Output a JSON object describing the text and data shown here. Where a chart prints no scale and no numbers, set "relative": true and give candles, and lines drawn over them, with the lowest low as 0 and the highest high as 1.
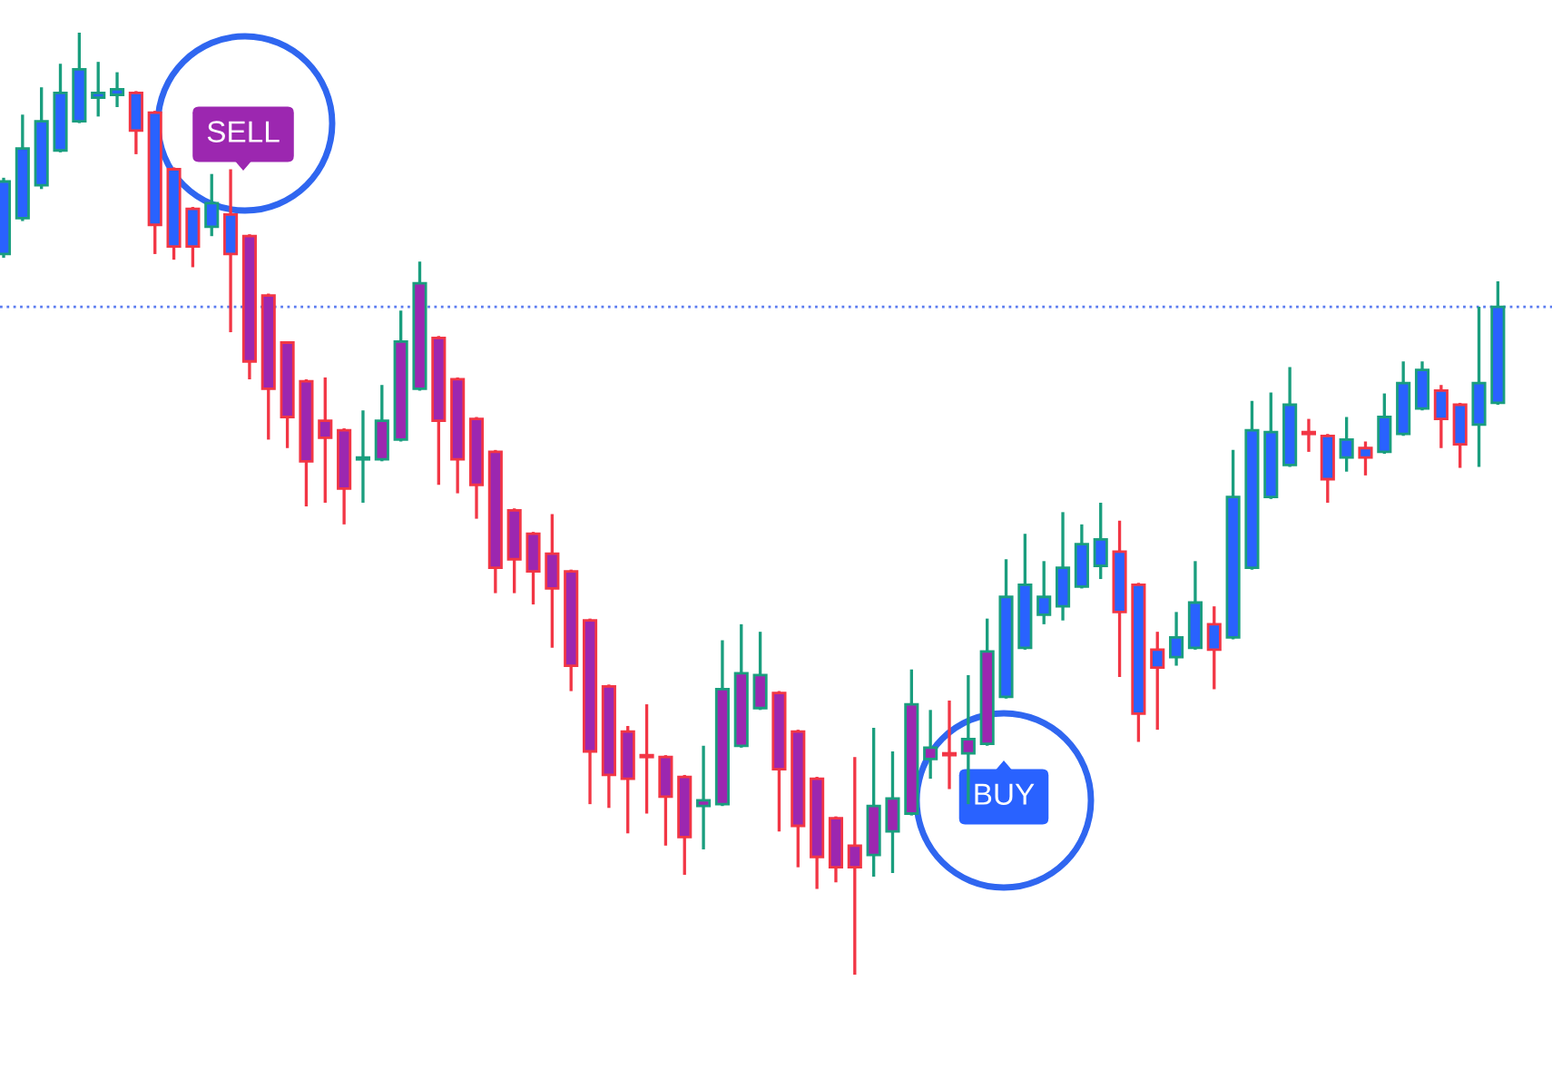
{
  "chart_data": {
    "type": "candlestick",
    "relative": true,
    "categories": [
      null,
      null,
      null,
      null,
      null,
      null,
      null,
      null,
      null,
      null,
      null,
      null,
      null,
      null,
      null,
      null,
      null,
      null,
      null,
      null,
      null,
      null,
      null,
      null,
      null,
      null,
      null,
      null,
      null,
      null,
      null,
      null,
      null,
      null,
      null,
      null,
      null,
      null,
      null,
      null,
      null,
      null,
      null,
      null,
      null,
      null,
      null,
      null,
      null,
      null,
      null,
      null,
      null,
      null,
      null,
      null,
      null,
      null,
      null,
      null,
      null,
      null,
      null,
      null,
      null,
      null,
      null,
      null,
      null,
      null,
      null,
      null,
      null,
      null,
      null,
      null,
      null,
      null,
      null,
      null
    ],
    "ohlc": [
      [
        0.765,
        0.846,
        0.761,
        0.842
      ],
      [
        0.803,
        0.913,
        0.8,
        0.877
      ],
      [
        0.838,
        0.942,
        0.834,
        0.906
      ],
      [
        0.875,
        0.967,
        0.873,
        0.936
      ],
      [
        0.906,
        1,
        0.904,
        0.961
      ],
      [
        0.931,
        0.969,
        0.911,
        0.936
      ],
      [
        0.934,
        0.958,
        0.921,
        0.94
      ],
      [
        0.936,
        0.938,
        0.871,
        0.896
      ],
      [
        0.915,
        0.917,
        0.765,
        0.796
      ],
      [
        0.855,
        0.857,
        0.759,
        0.773
      ],
      [
        0.813,
        0.815,
        0.751,
        0.773
      ],
      [
        0.794,
        0.85,
        0.784,
        0.819
      ],
      [
        0.807,
        0.855,
        0.682,
        0.765
      ],
      [
        0.784,
        0.786,
        0.632,
        0.651
      ],
      [
        0.721,
        0.723,
        0.568,
        0.622
      ],
      [
        0.671,
        0.672,
        0.559,
        0.592
      ],
      [
        0.63,
        0.632,
        0.497,
        0.545
      ],
      [
        0.588,
        0.634,
        0.501,
        0.57
      ],
      [
        0.578,
        0.58,
        0.478,
        0.516
      ],
      [
        0.547,
        0.599,
        0.501,
        0.549
      ],
      [
        0.547,
        0.626,
        0.545,
        0.588
      ],
      [
        0.568,
        0.705,
        0.566,
        0.672
      ],
      [
        0.622,
        0.757,
        0.62,
        0.734
      ],
      [
        0.676,
        0.678,
        0.52,
        0.588
      ],
      [
        0.632,
        0.634,
        0.511,
        0.547
      ],
      [
        0.59,
        0.592,
        0.484,
        0.52
      ],
      [
        0.555,
        0.557,
        0.405,
        0.432
      ],
      [
        0.493,
        0.495,
        0.405,
        0.441
      ],
      [
        0.468,
        0.47,
        0.393,
        0.428
      ],
      [
        0.447,
        0.489,
        0.347,
        0.41
      ],
      [
        0.428,
        0.43,
        0.301,
        0.328
      ],
      [
        0.376,
        0.378,
        0.181,
        0.237
      ],
      [
        0.306,
        0.308,
        0.177,
        0.212
      ],
      [
        0.258,
        0.264,
        0.15,
        0.208
      ],
      [
        0.233,
        0.287,
        0.171,
        0.231
      ],
      [
        0.231,
        0.233,
        0.137,
        0.189
      ],
      [
        0.21,
        0.212,
        0.106,
        0.146
      ],
      [
        0.179,
        0.243,
        0.133,
        0.185
      ],
      [
        0.181,
        0.355,
        0.179,
        0.303
      ],
      [
        0.243,
        0.372,
        0.241,
        0.32
      ],
      [
        0.283,
        0.364,
        0.281,
        0.318
      ],
      [
        0.299,
        0.301,
        0.152,
        0.218
      ],
      [
        0.258,
        0.26,
        0.114,
        0.158
      ],
      [
        0.208,
        0.21,
        0.091,
        0.125
      ],
      [
        0.166,
        0.168,
        0.098,
        0.114
      ],
      [
        0.137,
        0.231,
        0,
        0.114
      ],
      [
        0.127,
        0.262,
        0.104,
        0.179
      ],
      [
        0.152,
        0.237,
        0.108,
        0.187
      ],
      [
        0.171,
        0.324,
        0.169,
        0.287
      ],
      [
        0.229,
        0.281,
        0.208,
        0.241
      ],
      [
        0.235,
        0.291,
        0.197,
        0.233
      ],
      [
        0.235,
        0.318,
        0.181,
        0.25
      ],
      [
        0.245,
        0.378,
        0.243,
        0.343
      ],
      [
        0.295,
        0.441,
        0.293,
        0.401
      ],
      [
        0.347,
        0.468,
        0.345,
        0.414
      ],
      [
        0.382,
        0.439,
        0.372,
        0.401
      ],
      [
        0.391,
        0.491,
        0.376,
        0.432
      ],
      [
        0.412,
        0.478,
        0.41,
        0.457
      ],
      [
        0.434,
        0.501,
        0.42,
        0.462
      ],
      [
        0.449,
        0.482,
        0.316,
        0.385
      ],
      [
        0.414,
        0.416,
        0.247,
        0.277
      ],
      [
        0.345,
        0.364,
        0.26,
        0.326
      ],
      [
        0.337,
        0.385,
        0.328,
        0.358
      ],
      [
        0.347,
        0.439,
        0.345,
        0.395
      ],
      [
        0.372,
        0.391,
        0.303,
        0.345
      ],
      [
        0.358,
        0.557,
        0.356,
        0.507
      ],
      [
        0.432,
        0.609,
        0.43,
        0.578
      ],
      [
        0.507,
        0.618,
        0.505,
        0.576
      ],
      [
        0.541,
        0.645,
        0.539,
        0.605
      ],
      [
        0.576,
        0.59,
        0.555,
        0.574
      ],
      [
        0.572,
        0.574,
        0.501,
        0.526
      ],
      [
        0.549,
        0.592,
        0.534,
        0.568
      ],
      [
        0.559,
        0.566,
        0.53,
        0.549
      ],
      [
        0.555,
        0.617,
        0.553,
        0.592
      ],
      [
        0.574,
        0.651,
        0.572,
        0.628
      ],
      [
        0.601,
        0.651,
        0.599,
        0.642
      ],
      [
        0.62,
        0.626,
        0.559,
        0.59
      ],
      [
        0.605,
        0.607,
        0.538,
        0.563
      ],
      [
        0.584,
        0.709,
        0.539,
        0.628
      ],
      [
        0.607,
        0.736,
        0.605,
        0.709
      ]
    ],
    "colors": [
      "#2962ff",
      "#2962ff",
      "#2962ff",
      "#2962ff",
      "#2962ff",
      "#2962ff",
      "#2962ff",
      "#2962ff",
      "#2962ff",
      "#2962ff",
      "#2962ff",
      "#2962ff",
      "#2962ff",
      "#9c27b0",
      "#9c27b0",
      "#9c27b0",
      "#9c27b0",
      "#9c27b0",
      "#9c27b0",
      "#9c27b0",
      "#9c27b0",
      "#9c27b0",
      "#9c27b0",
      "#9c27b0",
      "#9c27b0",
      "#9c27b0",
      "#9c27b0",
      "#9c27b0",
      "#9c27b0",
      "#9c27b0",
      "#9c27b0",
      "#9c27b0",
      "#9c27b0",
      "#9c27b0",
      "#9c27b0",
      "#9c27b0",
      "#9c27b0",
      "#9c27b0",
      "#9c27b0",
      "#9c27b0",
      "#9c27b0",
      "#9c27b0",
      "#9c27b0",
      "#9c27b0",
      "#9c27b0",
      "#9c27b0",
      "#9c27b0",
      "#9c27b0",
      "#9c27b0",
      "#9c27b0",
      "#9c27b0",
      "#9c27b0",
      "#9c27b0",
      "#2962ff",
      "#2962ff",
      "#2962ff",
      "#2962ff",
      "#2962ff",
      "#2962ff",
      "#2962ff",
      "#2962ff",
      "#2962ff",
      "#2962ff",
      "#2962ff",
      "#2962ff",
      "#2962ff",
      "#2962ff",
      "#2962ff",
      "#2962ff",
      "#2962ff",
      "#2962ff",
      "#2962ff",
      "#2962ff",
      "#2962ff",
      "#2962ff",
      "#2962ff",
      "#2962ff",
      "#2962ff",
      "#2962ff",
      "#2962ff"
    ],
    "ref_lines": [
      {
        "axis": "y",
        "value": 0.709,
        "color": "#5b7cf0",
        "line_style": "dotted"
      }
    ],
    "annotations": [
      "SELL",
      "BUY"
    ]
  }
}
